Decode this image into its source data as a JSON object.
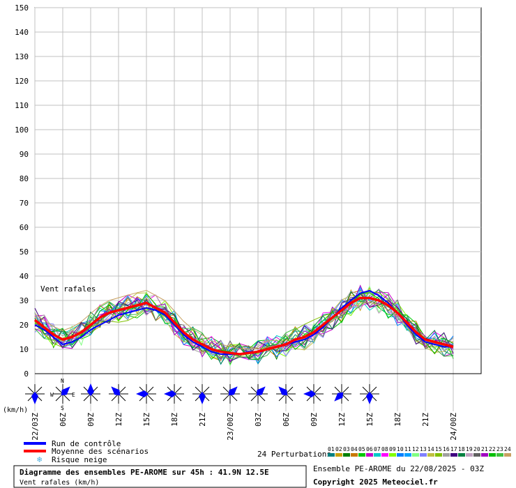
{
  "chart_data": {
    "type": "line",
    "label": "Vent rafales",
    "y_unit": "(km/h)",
    "ylim": [
      0,
      150
    ],
    "y_ticks": [
      0,
      10,
      20,
      30,
      40,
      50,
      60,
      70,
      80,
      90,
      100,
      110,
      120,
      130,
      140,
      150
    ],
    "x_range_hours": [
      0,
      48
    ],
    "x_ticks": [
      {
        "h": 0,
        "label": "22/03Z"
      },
      {
        "h": 3,
        "label": "06Z"
      },
      {
        "h": 6,
        "label": "09Z"
      },
      {
        "h": 9,
        "label": "12Z"
      },
      {
        "h": 12,
        "label": "15Z"
      },
      {
        "h": 15,
        "label": "18Z"
      },
      {
        "h": 18,
        "label": "21Z"
      },
      {
        "h": 21,
        "label": "23/00Z"
      },
      {
        "h": 24,
        "label": "03Z"
      },
      {
        "h": 27,
        "label": "06Z"
      },
      {
        "h": 30,
        "label": "09Z"
      },
      {
        "h": 33,
        "label": "12Z"
      },
      {
        "h": 36,
        "label": "15Z"
      },
      {
        "h": 39,
        "label": "18Z"
      },
      {
        "h": 42,
        "label": "21Z"
      },
      {
        "h": 45,
        "label": "24/00Z"
      }
    ],
    "control_run": {
      "name": "Run de contrôle",
      "color": "#0000ff",
      "x": [
        0,
        1,
        2,
        3,
        4,
        5,
        6,
        7,
        8,
        9,
        10,
        11,
        12,
        13,
        14,
        15,
        16,
        17,
        18,
        19,
        20,
        21,
        22,
        23,
        24,
        25,
        26,
        27,
        28,
        29,
        30,
        31,
        32,
        33,
        34,
        35,
        36,
        37,
        38,
        39,
        40,
        41,
        42,
        43,
        44,
        45
      ],
      "y": [
        20,
        18,
        15,
        12,
        13,
        15,
        18,
        20,
        22,
        24,
        25,
        26,
        27,
        26,
        24,
        20,
        16,
        13,
        11,
        9,
        8,
        8,
        8,
        9,
        9,
        10,
        11,
        12,
        13,
        14,
        16,
        19,
        23,
        27,
        30,
        33,
        34,
        32,
        29,
        25,
        20,
        16,
        13,
        12,
        11,
        11
      ]
    },
    "mean": {
      "name": "Moyenne des scénarios",
      "color": "#ff0000",
      "x": [
        0,
        1,
        2,
        3,
        4,
        5,
        6,
        7,
        8,
        9,
        10,
        11,
        12,
        13,
        14,
        15,
        16,
        17,
        18,
        19,
        20,
        21,
        22,
        23,
        24,
        25,
        26,
        27,
        28,
        29,
        30,
        31,
        32,
        33,
        34,
        35,
        36,
        37,
        38,
        39,
        40,
        41,
        42,
        43,
        44,
        45
      ],
      "y": [
        22,
        19,
        16,
        14,
        15,
        17,
        20,
        23,
        25,
        26,
        27,
        28,
        29,
        27,
        25,
        21,
        17,
        14,
        12,
        10,
        9,
        8.5,
        8,
        8.5,
        9,
        10,
        11,
        12,
        14,
        15,
        17,
        20,
        23,
        26,
        29,
        31,
        31,
        30,
        28,
        25,
        21,
        17,
        14,
        13,
        12,
        11
      ]
    },
    "perturbation_count_label": "24 Perturbations",
    "perturbation_ids": [
      "01",
      "02",
      "03",
      "04",
      "05",
      "06",
      "07",
      "08",
      "09",
      "10",
      "11",
      "12",
      "13",
      "14",
      "15",
      "16",
      "17",
      "18",
      "19",
      "20",
      "21",
      "22",
      "23",
      "24"
    ],
    "perturbation_colors": [
      "#008080",
      "#c8a000",
      "#008000",
      "#c87800",
      "#00c800",
      "#c800c8",
      "#00c8c8",
      "#ff00ff",
      "#80ff00",
      "#0080ff",
      "#00a0ff",
      "#80ff80",
      "#8080ff",
      "#c0c040",
      "#80c000",
      "#a0a0a0",
      "#400080",
      "#008040",
      "#c0a0c0",
      "#606060",
      "#a000c0",
      "#00c000",
      "#40c040",
      "#c8a060"
    ],
    "wind_direction_icons": [
      {
        "h": 0,
        "dir": "south"
      },
      {
        "h": 3,
        "dir": "northeast"
      },
      {
        "h": 6,
        "dir": "north"
      },
      {
        "h": 9,
        "dir": "northwest"
      },
      {
        "h": 12,
        "dir": "west"
      },
      {
        "h": 15,
        "dir": "west"
      },
      {
        "h": 18,
        "dir": "south"
      },
      {
        "h": 21,
        "dir": "northeast"
      },
      {
        "h": 24,
        "dir": "northeast"
      },
      {
        "h": 27,
        "dir": "northwest"
      },
      {
        "h": 30,
        "dir": "west"
      },
      {
        "h": 33,
        "dir": "southwest"
      },
      {
        "h": 36,
        "dir": "south"
      }
    ],
    "compass_labels": {
      "n": "N",
      "w": "W",
      "e": "E",
      "s": "S"
    }
  },
  "legend": {
    "control": "Run de contrôle",
    "mean": "Moyenne des scénarios",
    "snow": "Risque neige"
  },
  "footer": {
    "title": "Diagramme des ensembles PE-AROME sur 45h : 41.9N 12.5E",
    "subtitle": "Vent rafales (km/h)",
    "ensemble": "Ensemble PE-AROME du 22/08/2025 - 03Z",
    "copyright": "Copyright 2025 Meteociel.fr"
  }
}
